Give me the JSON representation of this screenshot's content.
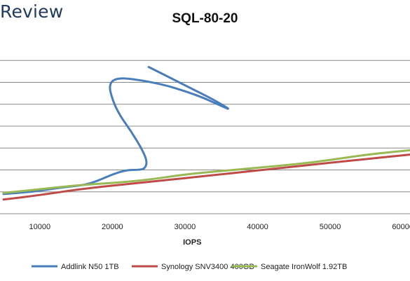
{
  "brand": {
    "text": "Review"
  },
  "chart_data": {
    "type": "line",
    "title": "SQL-80-20",
    "xlabel": "IOPS",
    "ylabel": "",
    "xlim": [
      5000,
      61000
    ],
    "ylim": [
      0,
      8
    ],
    "grid": true,
    "legend": "bottom",
    "x_ticks": [
      "10000",
      "20000",
      "30000",
      "40000",
      "50000",
      "60000"
    ],
    "series": [
      {
        "name": "Addlink N50 1TB",
        "color": "#4a7ebb",
        "points": [
          [
            5000,
            0.9
          ],
          [
            9000,
            1.0
          ],
          [
            13000,
            1.2
          ],
          [
            16000,
            1.3
          ],
          [
            18000,
            1.5
          ],
          [
            20000,
            1.8
          ],
          [
            22000,
            2.0
          ],
          [
            23500,
            2.0
          ],
          [
            24500,
            2.05
          ],
          [
            24800,
            2.4
          ],
          [
            24000,
            3.0
          ],
          [
            22500,
            3.8
          ],
          [
            21000,
            4.5
          ],
          [
            20000,
            5.2
          ],
          [
            19500,
            5.9
          ],
          [
            20500,
            6.2
          ],
          [
            23000,
            6.15
          ],
          [
            27000,
            5.9
          ],
          [
            30000,
            5.6
          ],
          [
            32500,
            5.3
          ],
          [
            34500,
            5.0
          ],
          [
            36500,
            4.7
          ],
          [
            34000,
            5.2
          ],
          [
            31000,
            5.7
          ],
          [
            28000,
            6.2
          ],
          [
            25000,
            6.7
          ]
        ]
      },
      {
        "name": "Synology SNV3400 400GB",
        "color": "#be4b48",
        "points": [
          [
            5000,
            0.65
          ],
          [
            10000,
            0.85
          ],
          [
            16000,
            1.15
          ],
          [
            25000,
            1.45
          ],
          [
            35000,
            1.8
          ],
          [
            45000,
            2.15
          ],
          [
            55000,
            2.5
          ],
          [
            61000,
            2.7
          ]
        ]
      },
      {
        "name": "Seagate IronWolf 1.92TB",
        "color": "#98b954",
        "points": [
          [
            5000,
            0.95
          ],
          [
            10000,
            1.12
          ],
          [
            15000,
            1.3
          ],
          [
            20000,
            1.4
          ],
          [
            25000,
            1.55
          ],
          [
            30000,
            1.8
          ],
          [
            35000,
            1.95
          ],
          [
            40000,
            2.1
          ],
          [
            45000,
            2.25
          ],
          [
            50000,
            2.45
          ],
          [
            55000,
            2.7
          ],
          [
            61000,
            2.9
          ]
        ]
      }
    ]
  }
}
